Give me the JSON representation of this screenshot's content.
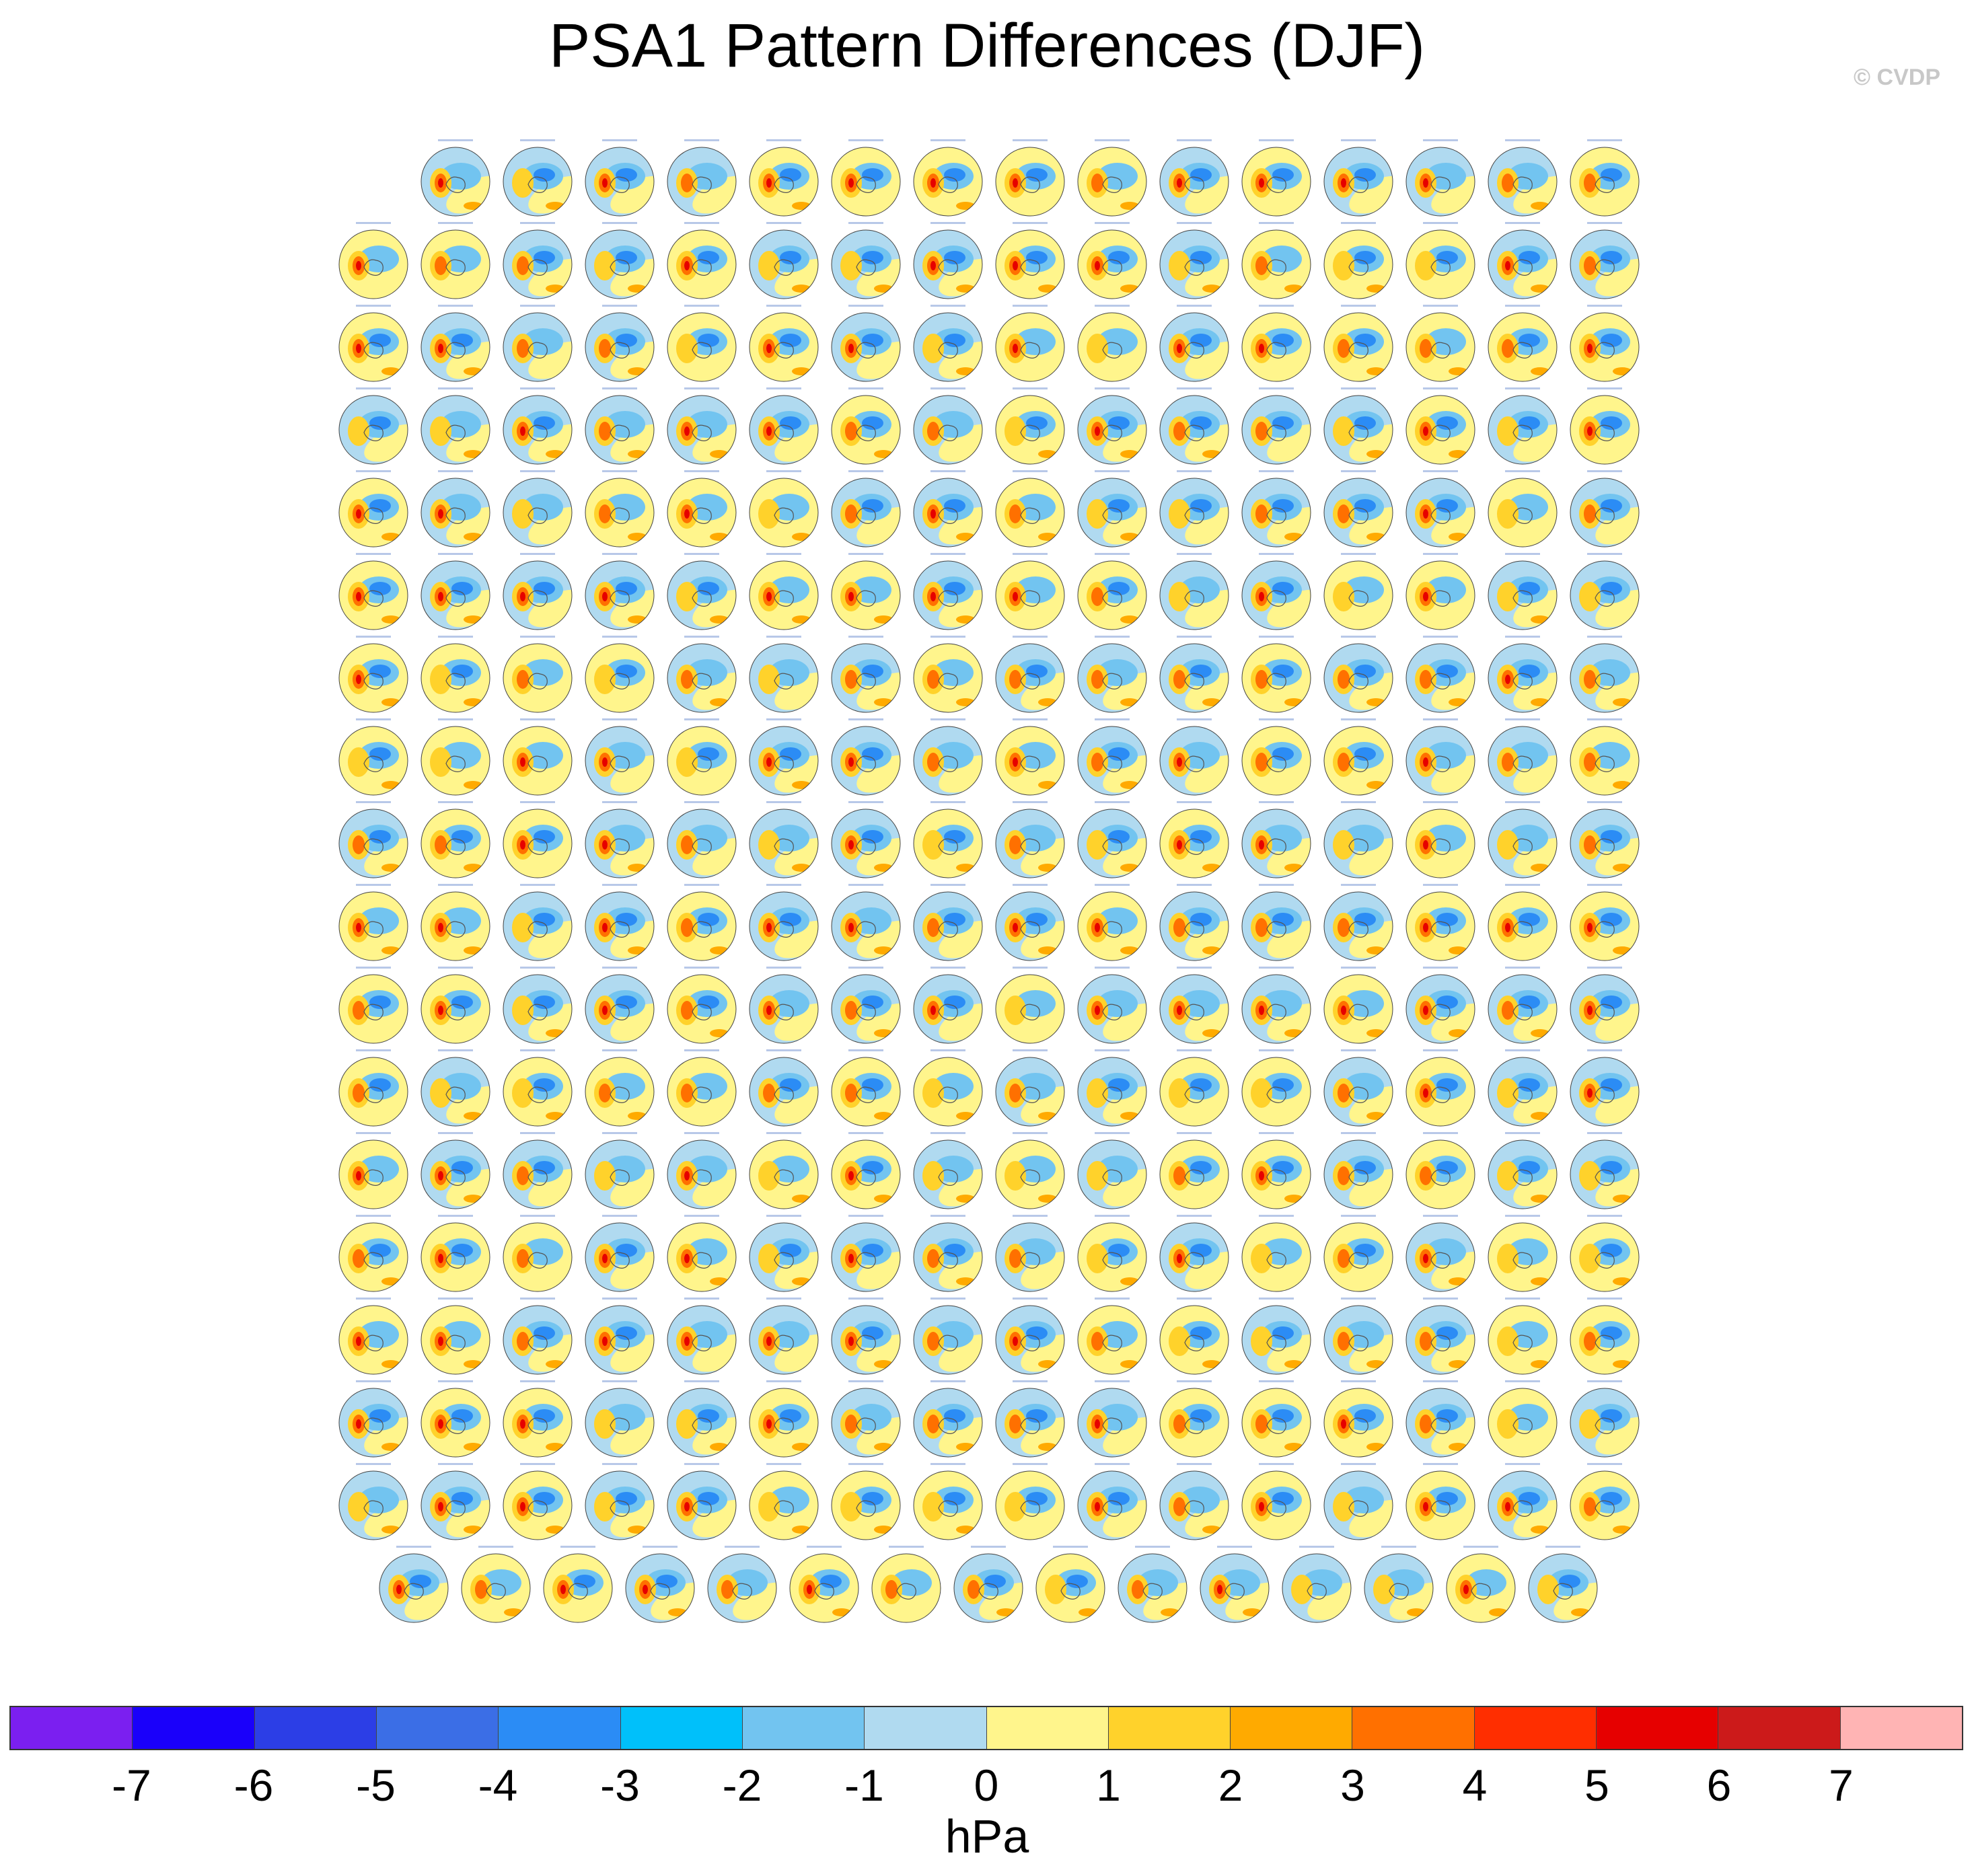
{
  "title": "PSA1 Pattern Differences (DJF)",
  "copyright": "© CVDP",
  "colorbar": {
    "units": "hPa",
    "tick_labels": [
      "-7",
      "-6",
      "-5",
      "-4",
      "-3",
      "-2",
      "-1",
      "0",
      "1",
      "2",
      "3",
      "4",
      "5",
      "6",
      "7"
    ],
    "colors": [
      "#7b1ff0",
      "#1a00fa",
      "#2c3ee6",
      "#3b6ee6",
      "#2b8cf5",
      "#00c0fa",
      "#72c4f0",
      "#b0daf0",
      "#fff58c",
      "#ffd22b",
      "#ffaa00",
      "#ff7000",
      "#ff2e00",
      "#e60000",
      "#cc1a1a",
      "#ffb4b4"
    ]
  },
  "panel_grid": {
    "rows": [
      15,
      16,
      16,
      16,
      16,
      16,
      16,
      16,
      16,
      16,
      16,
      16,
      16,
      16,
      16,
      16,
      16,
      15
    ]
  }
}
